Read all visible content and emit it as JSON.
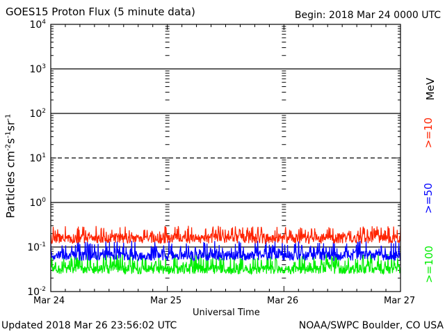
{
  "header": {
    "title": "GOES15 Proton Flux (5 minute data)",
    "begin": "Begin: 2018 Mar 24 0000 UTC"
  },
  "footer": {
    "updated": "Updated 2018 Mar 26 23:56:02 UTC",
    "credit": "NOAA/SWPC Boulder, CO USA"
  },
  "chart_data": {
    "type": "line",
    "title": "GOES15 Proton Flux (5 minute data)",
    "xlabel": "Universal Time",
    "ylabel": "Particles cm⁻²s⁻¹sr⁻¹",
    "y_scale": "log",
    "ylim": [
      0.01,
      10000
    ],
    "xlim": [
      0,
      3
    ],
    "x_ticks": [
      "Mar 24",
      "Mar 25",
      "Mar 26",
      "Mar 27"
    ],
    "y_ticks": [
      {
        "base": "10",
        "exp": "-2"
      },
      {
        "base": "10",
        "exp": "-1"
      },
      {
        "base": "10",
        "exp": "0"
      },
      {
        "base": "10",
        "exp": "1"
      },
      {
        "base": "10",
        "exp": "2"
      },
      {
        "base": "10",
        "exp": "3"
      },
      {
        "base": "10",
        "exp": "4"
      }
    ],
    "unit_label": "MeV",
    "grid": true,
    "series": [
      {
        "name": ">=10",
        "color": "#ff2200",
        "baseline": 0.16,
        "low": 0.12,
        "high": 0.3
      },
      {
        "name": ">=50",
        "color": "#0000ff",
        "baseline": 0.065,
        "low": 0.05,
        "high": 0.14
      },
      {
        "name": ">=100",
        "color": "#00ee00",
        "baseline": 0.032,
        "low": 0.025,
        "high": 0.07
      }
    ]
  }
}
